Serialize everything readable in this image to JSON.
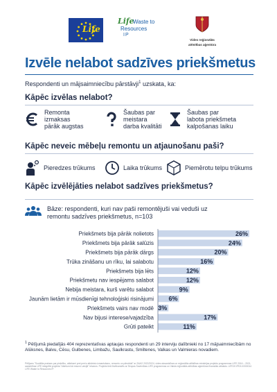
{
  "logos": {
    "eu_flag_script": "Life",
    "life_project_line1": "Life",
    "life_project_line2": "Waste to",
    "life_project_line3": "Resources",
    "life_project_line4": "IP",
    "agency_name_line1": "Vides reģionālās",
    "agency_name_line2": "attīstības aģentūra"
  },
  "title": "Izvēle nelabot sadzīves priekšmetus",
  "intro": {
    "text": "Respondenti un mājsaimniecību pārstāvji",
    "sup": "1",
    "tail": " uzskata, ka:"
  },
  "section1": {
    "heading": "Kāpēc izvēlas nelabot?",
    "reasons": [
      {
        "icon": "euro-icon",
        "line1": "Remonta",
        "line2": "izmaksas",
        "line3": "pārāk augstas"
      },
      {
        "icon": "question-mark-icon",
        "line1": "Šaubas par",
        "line2": "meistara",
        "line3": "darba kvalitāti"
      },
      {
        "icon": "hourglass-icon",
        "line1": "Šaubas par",
        "line2": "labota priekšmeta",
        "line3": "kalpošanas laiku"
      }
    ]
  },
  "section2": {
    "heading": "Kāpēc neveic mēbeļu remontu un atjaunošanu paši?",
    "items": [
      {
        "icon": "thinking-person-icon",
        "label": "Pieredzes trūkums"
      },
      {
        "icon": "clock-icon",
        "label": "Laika trūkums"
      },
      {
        "icon": "box-icon",
        "label": "Piemērotu telpu trūkums"
      }
    ]
  },
  "section3": {
    "heading": "Kāpēc izvēlējāties nelabot sadzīves priekšmetus?",
    "base_icon": "people-group-icon",
    "base_line1": "Bāze: respondenti, kuri nav paši remontējuši vai veduši uz",
    "base_line2": "remontu sadzīves priekšmetus, n=103"
  },
  "chart_data": {
    "type": "bar",
    "orientation": "horizontal",
    "categories": [
      "Priekšmets bija pārāk nolietots",
      "Priekšmets bija pārāk salūzis",
      "Priekšmets bija pārāk dārgs",
      "Trūka zināšanu un rīku, lai salabotu",
      "Priekšmets bija lēts",
      "Priekšmetu nav iespējams salabot",
      "Nebija meistara, kurš varētu salabot",
      "Jaunām lietām ir mūsdienīgi tehnoloģiski risinājumi",
      "Priekšmets vairs nav modē",
      "Nav bijusi interese/vajadzība",
      "Grūti pateikt"
    ],
    "values": [
      26,
      24,
      20,
      16,
      12,
      12,
      9,
      6,
      3,
      17,
      11
    ],
    "value_labels": [
      "26%",
      "24%",
      "20%",
      "16%",
      "12%",
      "12%",
      "9%",
      "6%",
      "3%",
      "17%",
      "11%"
    ],
    "xlim": [
      0,
      26
    ],
    "bar_color": "#c9d6ea",
    "grid": false,
    "legend": false
  },
  "footnote": {
    "sup": "1",
    "text": " Pētījumā piedalījās 404 reprezentatīvas aptaujas respondenti un 29 interviju dalībnieki no 17 mājsaimniecībām no Alūksnes, Balvu, Cēsu, Gulbenes, Limbažu, Saulkrastu, Smiltenes, Valkas un Valmieras novadiem."
  },
  "fine_print": "Pētījums \"Sociālās prakses par pieķrtību, attieksmi pret preču atkārtotu izmantošanu, remontu un pārstrādi\" ar ZAAO 2022/2024, vides aizsardzības un reģionālās attīstības ministrijas projektu programmas LIFE 2016 – 2021, sadarbības LIFE integrētā projekta \"Atkritumi kā resursi Latvijā\" ietvaros. Projekts tiek līdzfinansēts ar Eiropas Savienības LIFE programmas un Valsts reģionālās attīstības aģentūras finansiālu atbalstu. LIFE20 IPE/LV/000014 LIFE Waste to Resources IP."
}
